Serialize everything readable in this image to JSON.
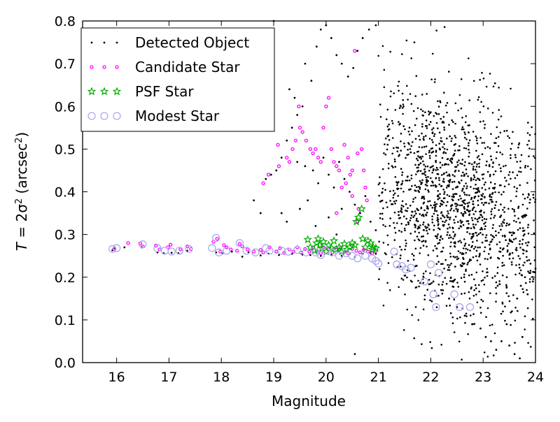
{
  "chart_data": {
    "type": "scatter",
    "xlabel": "Magnitude",
    "ylabel": "T = 2σ² (arcsec²)",
    "ylabel_parts": {
      "main": "T",
      "eq": " = 2σ",
      "sup": "2",
      "rest": " (arcsec",
      "sup2": "2",
      "close": ")"
    },
    "xlim": [
      15.35,
      24
    ],
    "ylim": [
      0,
      0.8
    ],
    "xticks": [
      "16",
      "17",
      "18",
      "19",
      "20",
      "21",
      "22",
      "23",
      "24"
    ],
    "yticks": [
      "0.0",
      "0.1",
      "0.2",
      "0.3",
      "0.4",
      "0.5",
      "0.6",
      "0.7",
      "0.8"
    ],
    "grid": false,
    "legend_placement": "top-left",
    "series": [
      {
        "name": "Detected Object",
        "marker": "dot",
        "color": "#000000",
        "points": [
          [
            15.92,
            0.263
          ],
          [
            15.96,
            0.268
          ],
          [
            16.15,
            0.27
          ],
          [
            16.48,
            0.27
          ],
          [
            16.78,
            0.258
          ],
          [
            16.9,
            0.256
          ],
          [
            17.05,
            0.257
          ],
          [
            17.18,
            0.256
          ],
          [
            17.35,
            0.262
          ],
          [
            17.9,
            0.258
          ],
          [
            18.02,
            0.256
          ],
          [
            18.2,
            0.26
          ],
          [
            18.4,
            0.248
          ],
          [
            18.52,
            0.258
          ],
          [
            18.75,
            0.251
          ],
          [
            18.9,
            0.255
          ],
          [
            19.1,
            0.252
          ],
          [
            19.35,
            0.255
          ],
          [
            19.55,
            0.253
          ],
          [
            19.7,
            0.252
          ],
          [
            19.9,
            0.25
          ],
          [
            20.1,
            0.252
          ],
          [
            20.3,
            0.25
          ],
          [
            20.45,
            0.255
          ],
          [
            20.55,
            0.248
          ],
          [
            20.7,
            0.255
          ],
          [
            20.85,
            0.256
          ],
          [
            20.95,
            0.255
          ],
          [
            18.62,
            0.38
          ],
          [
            18.75,
            0.35
          ],
          [
            18.95,
            0.44
          ],
          [
            19.05,
            0.45
          ],
          [
            19.15,
            0.48
          ],
          [
            19.25,
            0.52
          ],
          [
            19.35,
            0.55
          ],
          [
            19.45,
            0.58
          ],
          [
            19.55,
            0.6
          ],
          [
            19.3,
            0.64
          ],
          [
            19.4,
            0.62
          ],
          [
            19.6,
            0.7
          ],
          [
            19.72,
            0.66
          ],
          [
            19.82,
            0.74
          ],
          [
            19.9,
            0.78
          ],
          [
            20.0,
            0.79
          ],
          [
            20.1,
            0.76
          ],
          [
            20.2,
            0.72
          ],
          [
            20.3,
            0.7
          ],
          [
            20.42,
            0.67
          ],
          [
            20.52,
            0.69
          ],
          [
            20.6,
            0.73
          ],
          [
            20.7,
            0.76
          ],
          [
            20.82,
            0.78
          ],
          [
            20.95,
            0.79
          ],
          [
            19.0,
            0.8
          ],
          [
            19.45,
            0.47
          ],
          [
            19.6,
            0.46
          ],
          [
            19.75,
            0.45
          ],
          [
            19.85,
            0.42
          ],
          [
            19.95,
            0.48
          ],
          [
            20.05,
            0.44
          ],
          [
            20.15,
            0.41
          ],
          [
            20.25,
            0.47
          ],
          [
            20.35,
            0.43
          ],
          [
            20.45,
            0.4
          ],
          [
            20.55,
            0.37
          ],
          [
            20.65,
            0.35
          ],
          [
            20.75,
            0.39
          ],
          [
            20.85,
            0.33
          ],
          [
            20.95,
            0.31
          ],
          [
            20.55,
            0.02
          ],
          [
            19.5,
            0.36
          ],
          [
            19.65,
            0.38
          ],
          [
            19.8,
            0.32
          ],
          [
            20.05,
            0.34
          ],
          [
            20.2,
            0.3
          ],
          [
            20.3,
            0.36
          ],
          [
            19.25,
            0.33
          ],
          [
            19.15,
            0.35
          ],
          [
            18.85,
            0.43
          ],
          [
            22.05,
            0.19
          ],
          [
            22.2,
            0.17
          ],
          [
            22.35,
            0.15
          ],
          [
            22.5,
            0.13
          ],
          [
            22.65,
            0.11
          ],
          [
            22.8,
            0.09
          ],
          [
            22.95,
            0.08
          ],
          [
            23.05,
            0.06
          ],
          [
            23.15,
            0.05
          ],
          [
            23.25,
            0.03
          ],
          [
            23.35,
            0.05
          ],
          [
            23.5,
            0.04
          ],
          [
            23.6,
            0.02
          ],
          [
            23.7,
            0.01
          ],
          [
            23.75,
            0.06
          ],
          [
            23.45,
            0.09
          ],
          [
            23.55,
            0.12
          ],
          [
            23.65,
            0.15
          ],
          [
            23.72,
            0.18
          ],
          [
            23.8,
            0.2
          ],
          [
            23.9,
            0.21
          ],
          [
            23.85,
            0.16
          ],
          [
            23.95,
            0.19
          ],
          [
            24.0,
            0.22
          ]
        ]
      },
      {
        "name": "Candidate Star",
        "marker": "small-circle",
        "color": "#ff00ff",
        "points": [
          [
            15.95,
            0.266
          ],
          [
            16.22,
            0.28
          ],
          [
            16.45,
            0.279
          ],
          [
            16.5,
            0.272
          ],
          [
            16.75,
            0.274
          ],
          [
            16.82,
            0.265
          ],
          [
            16.98,
            0.27
          ],
          [
            17.03,
            0.276
          ],
          [
            17.22,
            0.265
          ],
          [
            17.35,
            0.272
          ],
          [
            17.42,
            0.266
          ],
          [
            17.85,
            0.283
          ],
          [
            17.92,
            0.29
          ],
          [
            17.98,
            0.26
          ],
          [
            18.05,
            0.275
          ],
          [
            18.1,
            0.27
          ],
          [
            18.18,
            0.265
          ],
          [
            18.3,
            0.262
          ],
          [
            18.35,
            0.278
          ],
          [
            18.4,
            0.272
          ],
          [
            18.5,
            0.265
          ],
          [
            18.62,
            0.26
          ],
          [
            18.75,
            0.264
          ],
          [
            18.8,
            0.258
          ],
          [
            18.92,
            0.27
          ],
          [
            19.05,
            0.26
          ],
          [
            19.12,
            0.268
          ],
          [
            19.2,
            0.257
          ],
          [
            19.3,
            0.265
          ],
          [
            19.38,
            0.26
          ],
          [
            19.45,
            0.27
          ],
          [
            19.52,
            0.258
          ],
          [
            19.6,
            0.266
          ],
          [
            19.68,
            0.26
          ],
          [
            19.75,
            0.27
          ],
          [
            19.82,
            0.262
          ],
          [
            19.9,
            0.256
          ],
          [
            19.95,
            0.27
          ],
          [
            20.05,
            0.266
          ],
          [
            20.12,
            0.258
          ],
          [
            20.2,
            0.264
          ],
          [
            20.28,
            0.27
          ],
          [
            20.35,
            0.26
          ],
          [
            20.42,
            0.256
          ],
          [
            20.5,
            0.266
          ],
          [
            20.58,
            0.262
          ],
          [
            20.65,
            0.258
          ],
          [
            20.72,
            0.264
          ],
          [
            20.8,
            0.26
          ],
          [
            20.88,
            0.256
          ],
          [
            20.95,
            0.262
          ],
          [
            18.8,
            0.42
          ],
          [
            18.9,
            0.44
          ],
          [
            19.08,
            0.51
          ],
          [
            19.3,
            0.47
          ],
          [
            19.36,
            0.5
          ],
          [
            19.42,
            0.52
          ],
          [
            19.48,
            0.6
          ],
          [
            19.55,
            0.54
          ],
          [
            19.62,
            0.52
          ],
          [
            19.7,
            0.5
          ],
          [
            19.75,
            0.49
          ],
          [
            19.8,
            0.5
          ],
          [
            19.85,
            0.48
          ],
          [
            19.9,
            0.47
          ],
          [
            19.95,
            0.55
          ],
          [
            20.0,
            0.6
          ],
          [
            20.05,
            0.62
          ],
          [
            20.1,
            0.5
          ],
          [
            20.15,
            0.47
          ],
          [
            20.2,
            0.46
          ],
          [
            20.25,
            0.45
          ],
          [
            20.3,
            0.41
          ],
          [
            20.35,
            0.51
          ],
          [
            20.38,
            0.42
          ],
          [
            20.42,
            0.48
          ],
          [
            20.46,
            0.44
          ],
          [
            20.5,
            0.45
          ],
          [
            20.55,
            0.73
          ],
          [
            20.6,
            0.49
          ],
          [
            20.68,
            0.5
          ],
          [
            20.72,
            0.45
          ],
          [
            20.75,
            0.41
          ],
          [
            20.78,
            0.38
          ],
          [
            20.62,
            0.36
          ],
          [
            20.5,
            0.39
          ],
          [
            20.6,
            0.33
          ],
          [
            19.5,
            0.55
          ],
          [
            19.25,
            0.48
          ],
          [
            19.1,
            0.46
          ],
          [
            20.2,
            0.35
          ]
        ]
      },
      {
        "name": "PSF Star",
        "marker": "star",
        "color": "#00aa00",
        "points": [
          [
            19.65,
            0.288
          ],
          [
            19.7,
            0.27
          ],
          [
            19.78,
            0.262
          ],
          [
            19.82,
            0.28
          ],
          [
            19.85,
            0.29
          ],
          [
            19.88,
            0.275
          ],
          [
            19.92,
            0.268
          ],
          [
            19.95,
            0.283
          ],
          [
            20.0,
            0.26
          ],
          [
            20.05,
            0.275
          ],
          [
            20.1,
            0.268
          ],
          [
            20.15,
            0.285
          ],
          [
            20.2,
            0.265
          ],
          [
            20.25,
            0.27
          ],
          [
            20.3,
            0.26
          ],
          [
            20.35,
            0.278
          ],
          [
            20.4,
            0.265
          ],
          [
            20.45,
            0.27
          ],
          [
            20.5,
            0.28
          ],
          [
            20.55,
            0.275
          ],
          [
            20.58,
            0.33
          ],
          [
            20.62,
            0.34
          ],
          [
            20.68,
            0.36
          ],
          [
            20.7,
            0.29
          ],
          [
            20.75,
            0.27
          ],
          [
            20.8,
            0.285
          ],
          [
            20.85,
            0.28
          ],
          [
            20.88,
            0.265
          ],
          [
            20.9,
            0.27
          ],
          [
            20.95,
            0.268
          ]
        ]
      },
      {
        "name": "Modest Star",
        "marker": "open-circle",
        "color": "#aaaaee",
        "points": [
          [
            15.92,
            0.266
          ],
          [
            16.0,
            0.268
          ],
          [
            16.5,
            0.277
          ],
          [
            16.78,
            0.268
          ],
          [
            16.92,
            0.262
          ],
          [
            17.05,
            0.26
          ],
          [
            17.2,
            0.262
          ],
          [
            17.38,
            0.266
          ],
          [
            17.82,
            0.268
          ],
          [
            17.9,
            0.292
          ],
          [
            17.95,
            0.258
          ],
          [
            18.1,
            0.262
          ],
          [
            18.35,
            0.28
          ],
          [
            18.48,
            0.262
          ],
          [
            18.65,
            0.258
          ],
          [
            18.85,
            0.268
          ],
          [
            18.92,
            0.262
          ],
          [
            19.15,
            0.262
          ],
          [
            19.28,
            0.26
          ],
          [
            19.45,
            0.264
          ],
          [
            19.62,
            0.258
          ],
          [
            19.8,
            0.258
          ],
          [
            19.9,
            0.252
          ],
          [
            20.0,
            0.262
          ],
          [
            20.12,
            0.258
          ],
          [
            20.25,
            0.25
          ],
          [
            20.38,
            0.256
          ],
          [
            20.5,
            0.25
          ],
          [
            20.6,
            0.244
          ],
          [
            20.75,
            0.25
          ],
          [
            20.88,
            0.244
          ],
          [
            20.95,
            0.238
          ],
          [
            21.0,
            0.232
          ],
          [
            21.3,
            0.26
          ],
          [
            21.35,
            0.23
          ],
          [
            21.45,
            0.226
          ],
          [
            21.52,
            0.218
          ],
          [
            21.62,
            0.222
          ],
          [
            22.0,
            0.23
          ],
          [
            21.88,
            0.19
          ],
          [
            22.05,
            0.16
          ],
          [
            22.1,
            0.13
          ],
          [
            22.15,
            0.21
          ],
          [
            22.45,
            0.16
          ],
          [
            22.55,
            0.13
          ],
          [
            22.75,
            0.13
          ]
        ]
      }
    ],
    "background_field": {
      "x_range": [
        21.0,
        24.0
      ],
      "peak_x": 22.3,
      "y_center": 0.38,
      "count": 1500,
      "color": "#000000"
    }
  }
}
